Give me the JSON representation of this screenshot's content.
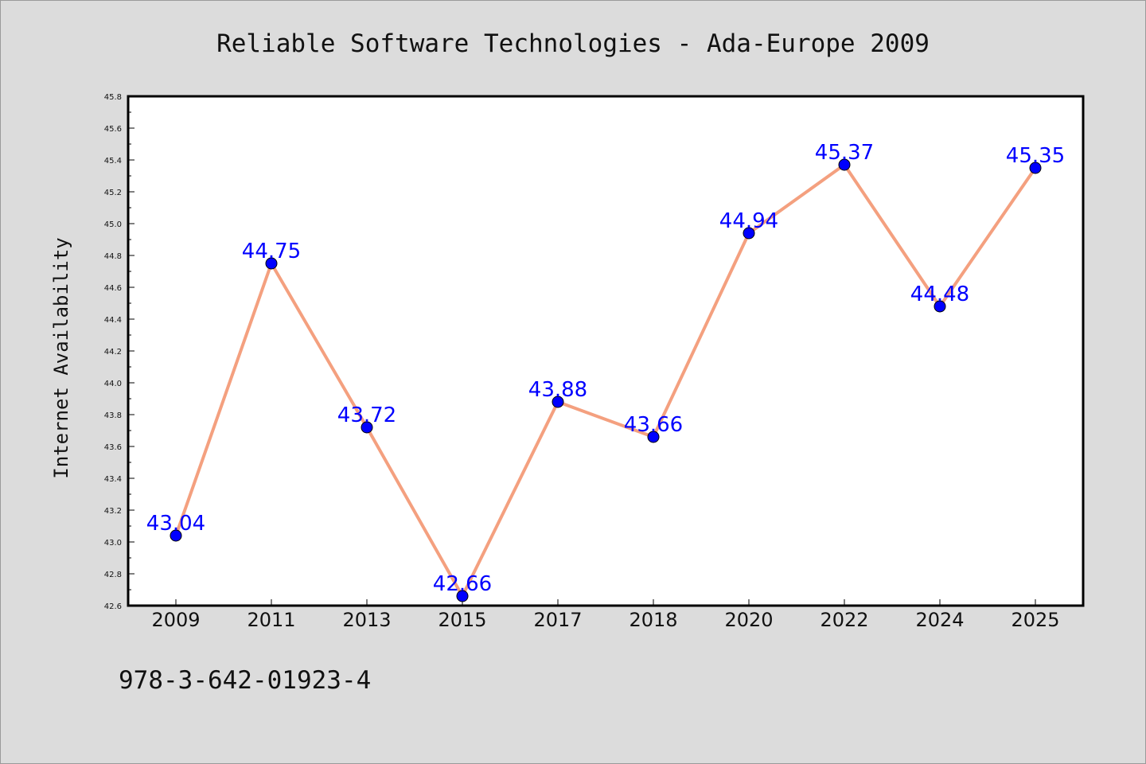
{
  "chart_data": {
    "type": "line",
    "title": "Reliable Software Technologies - Ada-Europe 2009",
    "xlabel": "",
    "ylabel": "Internet Availability",
    "categories": [
      "2009",
      "2011",
      "2013",
      "2015",
      "2017",
      "2018",
      "2020",
      "2022",
      "2024",
      "2025"
    ],
    "series": [
      {
        "values": [
          43.04,
          44.75,
          43.72,
          42.66,
          43.88,
          43.66,
          44.94,
          45.37,
          44.48,
          45.35
        ]
      }
    ],
    "data_labels": [
      "43.04",
      "44.75",
      "43.72",
      "42.66",
      "43.88",
      "43.66",
      "44.94",
      "45.37",
      "44.48",
      "45.35"
    ],
    "ylim": [
      42.6,
      45.8
    ],
    "yticks": [
      "42.6",
      "42.8",
      "43.0",
      "43.2",
      "43.4",
      "43.6",
      "43.8",
      "44.0",
      "44.2",
      "44.4",
      "44.6",
      "44.8",
      "45.0",
      "45.2",
      "45.4",
      "45.6",
      "45.8"
    ],
    "grid": false,
    "legend": "none",
    "colors": {
      "line": "#f4a07f",
      "marker": "#0000ff",
      "marker_edge": "#000000",
      "data_label": "#0000ff",
      "figure_background": "#dcdcdc",
      "plot_background": "#ffffff"
    }
  },
  "footer": {
    "text": "978-3-642-01923-4"
  }
}
